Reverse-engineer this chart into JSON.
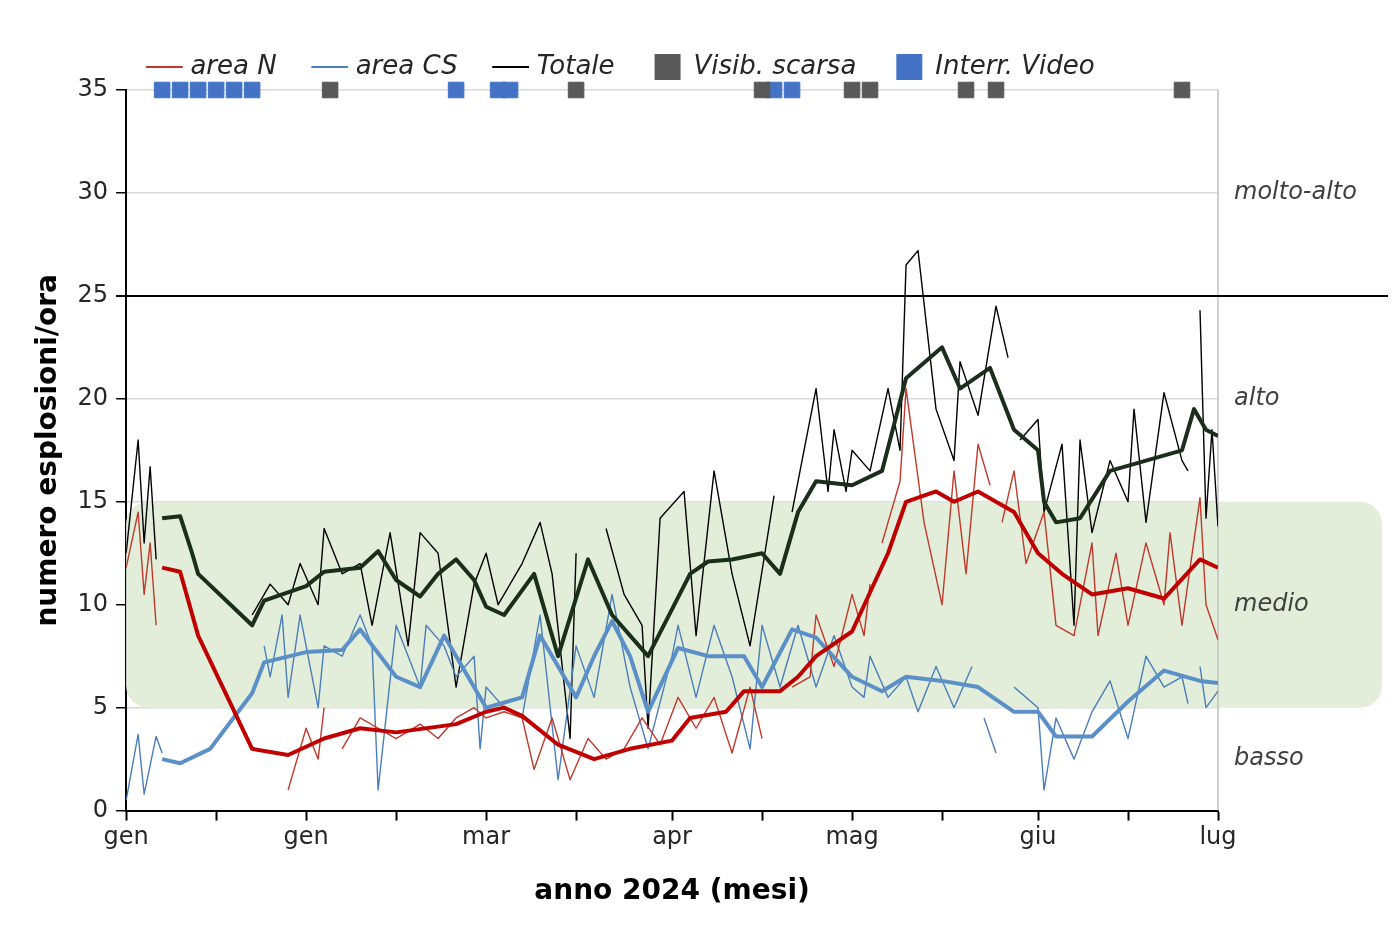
{
  "chart_data": {
    "type": "line",
    "xlabel": "anno 2024 (mesi)",
    "ylabel": "numero esplosioni/ora",
    "xlim": [
      "2024-01-01",
      "2024-07-01"
    ],
    "xticks": [
      {
        "value": "2024-01-01",
        "label": "gen"
      },
      {
        "value": "2024-01-16",
        "label": null
      },
      {
        "value": "2024-01-31",
        "label": "gen"
      },
      {
        "value": "2024-02-15",
        "label": null
      },
      {
        "value": "2024-03-01",
        "label": "mar"
      },
      {
        "value": "2024-03-16",
        "label": null
      },
      {
        "value": "2024-04-01",
        "label": "apr"
      },
      {
        "value": "2024-04-16",
        "label": null
      },
      {
        "value": "2024-05-01",
        "label": "mag"
      },
      {
        "value": "2024-05-16",
        "label": null
      },
      {
        "value": "2024-06-01",
        "label": "giu"
      },
      {
        "value": "2024-06-16",
        "label": null
      },
      {
        "value": "2024-07-01",
        "label": "lug"
      }
    ],
    "ylim": [
      0,
      35
    ],
    "yticks": [
      0,
      5,
      10,
      15,
      20,
      25,
      30,
      35
    ],
    "grid": "y",
    "legend": "top",
    "marker": "none",
    "ref_lines": [
      {
        "axis": "y",
        "value": 25,
        "color": "#000000"
      }
    ],
    "bands": [
      {
        "axis": "y",
        "from": 5,
        "to": 15,
        "label": "medio",
        "color": "#e2eed9"
      }
    ],
    "annotations": [
      "molto-alto",
      "alto",
      "basso"
    ],
    "series": [
      {
        "name": "area N",
        "color": "#c0392b",
        "x": [
          "2024-01-01",
          "2024-01-03",
          "2024-01-04",
          "2024-01-05",
          "2024-01-06",
          "2024-01-07",
          "2024-01-28",
          "2024-01-31",
          "2024-02-02",
          "2024-02-03",
          "2024-02-05",
          "2024-02-06",
          "2024-02-09",
          "2024-02-12",
          "2024-02-15",
          "2024-02-19",
          "2024-02-22",
          "2024-02-25",
          "2024-02-28",
          "2024-03-01",
          "2024-03-04",
          "2024-03-07",
          "2024-03-09",
          "2024-03-12",
          "2024-03-15",
          "2024-03-18",
          "2024-03-21",
          "2024-03-24",
          "2024-03-27",
          "2024-03-30",
          "2024-04-02",
          "2024-04-05",
          "2024-04-08",
          "2024-04-11",
          "2024-04-14",
          "2024-04-16",
          "2024-04-18",
          "2024-04-21",
          "2024-04-24",
          "2024-04-25",
          "2024-04-28",
          "2024-05-01",
          "2024-05-03",
          "2024-05-04",
          "2024-05-05",
          "2024-05-06",
          "2024-05-09",
          "2024-05-10",
          "2024-05-13",
          "2024-05-16",
          "2024-05-18",
          "2024-05-20",
          "2024-05-22",
          "2024-05-24",
          "2024-05-25",
          "2024-05-26",
          "2024-05-28",
          "2024-05-30",
          "2024-06-02",
          "2024-06-04",
          "2024-06-07",
          "2024-06-10",
          "2024-06-11",
          "2024-06-14",
          "2024-06-16",
          "2024-06-19",
          "2024-06-22",
          "2024-06-23",
          "2024-06-25",
          "2024-06-28",
          "2024-06-29",
          "2024-07-01"
        ],
        "values": [
          11.8,
          14.5,
          10.5,
          13,
          9,
          null,
          1,
          4,
          2.5,
          5,
          null,
          3,
          4.5,
          4,
          3.5,
          4.2,
          3.5,
          4.5,
          5,
          4.5,
          4.8,
          4.5,
          2,
          4.5,
          1.5,
          3.5,
          2.5,
          3,
          4.5,
          3.2,
          5.5,
          4,
          5.5,
          2.8,
          6,
          3.5,
          null,
          6,
          6.5,
          9.5,
          7,
          10.5,
          8.5,
          11,
          null,
          13,
          16,
          20.5,
          14,
          10,
          16.5,
          11.5,
          17.8,
          15.8,
          null,
          14,
          16.5,
          12,
          14.5,
          9,
          8.5,
          13,
          8.5,
          12.5,
          9,
          13,
          10,
          13.5,
          9,
          15.2,
          10,
          8.3
        ]
      },
      {
        "name": "area CS",
        "color": "#4a7ebb",
        "x": [
          "2024-01-01",
          "2024-01-03",
          "2024-01-04",
          "2024-01-06",
          "2024-01-07",
          "2024-01-16",
          "2024-01-24",
          "2024-01-25",
          "2024-01-27",
          "2024-01-28",
          "2024-01-30",
          "2024-02-02",
          "2024-02-03",
          "2024-02-06",
          "2024-02-09",
          "2024-02-11",
          "2024-02-12",
          "2024-02-15",
          "2024-02-19",
          "2024-02-20",
          "2024-02-23",
          "2024-02-25",
          "2024-02-28",
          "2024-02-29",
          "2024-03-01",
          "2024-03-04",
          "2024-03-07",
          "2024-03-10",
          "2024-03-13",
          "2024-03-16",
          "2024-03-19",
          "2024-03-22",
          "2024-03-25",
          "2024-03-28",
          "2024-04-01",
          "2024-04-02",
          "2024-04-05",
          "2024-04-08",
          "2024-04-11",
          "2024-04-14",
          "2024-04-16",
          "2024-04-19",
          "2024-04-22",
          "2024-04-25",
          "2024-04-28",
          "2024-05-01",
          "2024-05-03",
          "2024-05-04",
          "2024-05-07",
          "2024-05-10",
          "2024-05-12",
          "2024-05-15",
          "2024-05-18",
          "2024-05-21",
          "2024-05-22",
          "2024-05-23",
          "2024-05-25",
          "2024-05-27",
          "2024-05-28",
          "2024-06-01",
          "2024-06-02",
          "2024-06-04",
          "2024-06-07",
          "2024-06-10",
          "2024-06-13",
          "2024-06-16",
          "2024-06-19",
          "2024-06-22",
          "2024-06-25",
          "2024-06-26",
          "2024-06-27",
          "2024-06-28",
          "2024-06-29",
          "2024-07-01"
        ],
        "values": [
          0.5,
          3.7,
          0.8,
          3.6,
          2.8,
          null,
          8,
          6.5,
          9.5,
          5.5,
          9.5,
          5,
          8,
          7.5,
          9.5,
          8,
          1,
          9,
          6,
          9,
          8,
          6.5,
          7.5,
          3,
          6,
          5,
          4.5,
          9.5,
          1.5,
          8,
          5.5,
          10.5,
          6,
          3,
          7.5,
          9,
          5.5,
          9,
          6.5,
          3,
          9,
          6,
          9,
          6,
          8.5,
          6,
          5.5,
          7.5,
          5.5,
          6.5,
          4.8,
          7,
          5,
          7,
          null,
          4.5,
          2.8,
          null,
          6,
          5,
          1,
          4.5,
          2.5,
          4.8,
          6.3,
          3.5,
          7.5,
          6,
          6.5,
          5.2,
          null,
          7,
          5,
          5.8
        ]
      },
      {
        "name": "Totale",
        "color": "#000000",
        "x": [
          "2024-01-01",
          "2024-01-03",
          "2024-01-04",
          "2024-01-05",
          "2024-01-06",
          "2024-01-07",
          "2024-01-22",
          "2024-01-25",
          "2024-01-28",
          "2024-01-30",
          "2024-02-02",
          "2024-02-03",
          "2024-02-06",
          "2024-02-09",
          "2024-02-11",
          "2024-02-14",
          "2024-02-17",
          "2024-02-19",
          "2024-02-22",
          "2024-02-25",
          "2024-02-28",
          "2024-03-01",
          "2024-03-03",
          "2024-03-06",
          "2024-03-07",
          "2024-03-10",
          "2024-03-12",
          "2024-03-15",
          "2024-03-16",
          "2024-03-18",
          "2024-03-21",
          "2024-03-24",
          "2024-03-27",
          "2024-03-28",
          "2024-03-30",
          "2024-04-03",
          "2024-04-05",
          "2024-04-08",
          "2024-04-11",
          "2024-04-14",
          "2024-04-18",
          "2024-04-19",
          "2024-04-21",
          "2024-04-22",
          "2024-04-25",
          "2024-04-27",
          "2024-04-28",
          "2024-04-30",
          "2024-05-01",
          "2024-05-04",
          "2024-05-07",
          "2024-05-09",
          "2024-05-10",
          "2024-05-12",
          "2024-05-15",
          "2024-05-18",
          "2024-05-19",
          "2024-05-22",
          "2024-05-25",
          "2024-05-27",
          "2024-05-28",
          "2024-05-29",
          "2024-06-01",
          "2024-06-02",
          "2024-06-05",
          "2024-06-07",
          "2024-06-08",
          "2024-06-10",
          "2024-06-13",
          "2024-06-16",
          "2024-06-17",
          "2024-06-19",
          "2024-06-22",
          "2024-06-25",
          "2024-06-26",
          "2024-06-27",
          "2024-06-28",
          "2024-06-29",
          "2024-06-30",
          "2024-07-01"
        ],
        "values": [
          12.5,
          18,
          13,
          16.7,
          12.2,
          null,
          9.5,
          11,
          10,
          12,
          10,
          13.7,
          11.5,
          12,
          9,
          13.5,
          8,
          13.5,
          12.5,
          6,
          11,
          12.5,
          10,
          11.5,
          12,
          14,
          11.5,
          3.5,
          12.5,
          null,
          13.7,
          10.5,
          9,
          4,
          14.2,
          15.5,
          8.5,
          16.5,
          11.5,
          8,
          15.3,
          null,
          14.5,
          16,
          20.5,
          15.5,
          18.5,
          15.5,
          17.5,
          16.5,
          20.5,
          17.5,
          26.5,
          27.2,
          19.5,
          17,
          21.8,
          19.2,
          24.5,
          22,
          null,
          18,
          19,
          14.5,
          17.8,
          9,
          18,
          13.5,
          17,
          15,
          19.5,
          14,
          20.3,
          17,
          16.5,
          null,
          24.3,
          14.2,
          18.5,
          13.8
        ]
      },
      {
        "color": "#c00000",
        "x": [
          "2024-01-07",
          "2024-01-10",
          "2024-01-13",
          "2024-01-22",
          "2024-01-28",
          "2024-02-03",
          "2024-02-09",
          "2024-02-15",
          "2024-02-25",
          "2024-03-01",
          "2024-03-04",
          "2024-03-07",
          "2024-03-13",
          "2024-03-19",
          "2024-03-25",
          "2024-04-01",
          "2024-04-04",
          "2024-04-10",
          "2024-04-13",
          "2024-04-19",
          "2024-04-22",
          "2024-04-25",
          "2024-05-01",
          "2024-05-07",
          "2024-05-10",
          "2024-05-15",
          "2024-05-18",
          "2024-05-22",
          "2024-05-28",
          "2024-06-01",
          "2024-06-05",
          "2024-06-10",
          "2024-06-16",
          "2024-06-22",
          "2024-06-28",
          "2024-07-01"
        ],
        "values": [
          11.8,
          11.6,
          8.5,
          3,
          2.7,
          3.5,
          4,
          3.8,
          4.2,
          4.8,
          5,
          4.6,
          3.2,
          2.5,
          3,
          3.4,
          4.5,
          4.8,
          5.8,
          5.8,
          6.5,
          7.5,
          8.7,
          12.5,
          15,
          15.5,
          15,
          15.5,
          14.5,
          12.5,
          11.5,
          10.5,
          10.8,
          10.3,
          12.2,
          11.8
        ]
      },
      {
        "color": "#5b8fc7",
        "x": [
          "2024-01-07",
          "2024-01-10",
          "2024-01-15",
          "2024-01-22",
          "2024-01-24",
          "2024-01-31",
          "2024-02-06",
          "2024-02-09",
          "2024-02-15",
          "2024-02-19",
          "2024-02-23",
          "2024-02-26",
          "2024-03-01",
          "2024-03-07",
          "2024-03-10",
          "2024-03-16",
          "2024-03-19",
          "2024-03-22",
          "2024-03-25",
          "2024-03-28",
          "2024-04-02",
          "2024-04-07",
          "2024-04-13",
          "2024-04-16",
          "2024-04-21",
          "2024-04-25",
          "2024-05-01",
          "2024-05-06",
          "2024-05-10",
          "2024-05-16",
          "2024-05-22",
          "2024-05-28",
          "2024-06-01",
          "2024-06-04",
          "2024-06-10",
          "2024-06-16",
          "2024-06-22",
          "2024-06-28",
          "2024-07-01"
        ],
        "values": [
          2.5,
          2.3,
          3,
          5.7,
          7.2,
          7.7,
          7.8,
          8.8,
          6.5,
          6,
          8.5,
          7,
          5,
          5.5,
          8.5,
          5.5,
          7.5,
          9.2,
          7.5,
          4.8,
          7.9,
          7.5,
          7.5,
          6,
          8.8,
          8.4,
          6.5,
          5.8,
          6.5,
          6.3,
          6,
          4.8,
          4.8,
          3.6,
          3.6,
          5.3,
          6.8,
          6.3,
          6.2
        ]
      },
      {
        "color": "#1a2e1a",
        "x": [
          "2024-01-07",
          "2024-01-10",
          "2024-01-12",
          "2024-01-13",
          "2024-01-22",
          "2024-01-24",
          "2024-01-31",
          "2024-02-03",
          "2024-02-09",
          "2024-02-12",
          "2024-02-15",
          "2024-02-19",
          "2024-02-22",
          "2024-02-25",
          "2024-02-28",
          "2024-03-01",
          "2024-03-04",
          "2024-03-09",
          "2024-03-13",
          "2024-03-18",
          "2024-03-22",
          "2024-03-28",
          "2024-04-04",
          "2024-04-07",
          "2024-04-11",
          "2024-04-16",
          "2024-04-19",
          "2024-04-22",
          "2024-04-25",
          "2024-04-28",
          "2024-05-01",
          "2024-05-06",
          "2024-05-10",
          "2024-05-16",
          "2024-05-19",
          "2024-05-24",
          "2024-05-28",
          "2024-06-01",
          "2024-06-02",
          "2024-06-04",
          "2024-06-08",
          "2024-06-13",
          "2024-06-19",
          "2024-06-25",
          "2024-06-27",
          "2024-06-29",
          "2024-07-01"
        ],
        "values": [
          14.2,
          14.3,
          12.5,
          11.5,
          9,
          10.2,
          10.9,
          11.6,
          11.8,
          12.6,
          11.2,
          10.4,
          11.5,
          12.2,
          11.2,
          9.9,
          9.5,
          11.5,
          7.5,
          12.2,
          9.5,
          7.5,
          11.5,
          12.1,
          12.2,
          12.5,
          11.5,
          14.5,
          16,
          15.9,
          15.8,
          16.5,
          21,
          22.5,
          20.5,
          21.5,
          18.5,
          17.5,
          15,
          14,
          14.2,
          16.5,
          17,
          17.5,
          19.5,
          18.5,
          18.2
        ]
      },
      {
        "name": "Visib. scarsa",
        "type": "scatter",
        "marker": "square",
        "color": "#595959",
        "x": [
          "2024-02-04",
          "2024-03-16",
          "2024-04-16",
          "2024-05-01",
          "2024-05-04",
          "2024-05-20",
          "2024-05-25",
          "2024-06-25"
        ],
        "values": [
          35,
          35,
          35,
          35,
          35,
          35,
          35,
          35
        ]
      },
      {
        "name": "Interr. Video",
        "type": "scatter",
        "marker": "square",
        "color": "#4472c4",
        "x": [
          "2024-01-07",
          "2024-01-10",
          "2024-01-13",
          "2024-01-16",
          "2024-01-19",
          "2024-01-22",
          "2024-02-25",
          "2024-03-03",
          "2024-03-05",
          "2024-04-18",
          "2024-04-21"
        ],
        "values": [
          35,
          35,
          35,
          35,
          35,
          35,
          35,
          35,
          35,
          35,
          35
        ]
      }
    ]
  }
}
